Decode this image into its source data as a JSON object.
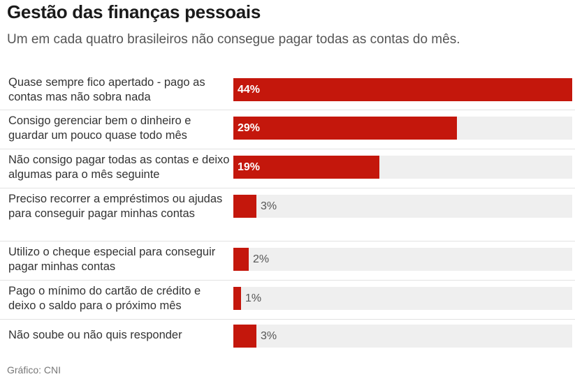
{
  "title": "Gestão das finanças pessoais",
  "subtitle": "Um em cada quatro brasileiros não consegue pagar todas as contas do mês.",
  "source": "Gráfico: CNI",
  "colors": {
    "bar": "#c4170c",
    "track": "#efefef"
  },
  "chart_data": {
    "type": "bar",
    "orientation": "horizontal",
    "categories": [
      "Quase sempre fico apertado - pago as contas mas não sobra nada",
      "Consigo gerenciar bem o dinheiro e guardar um pouco quase todo mês",
      "Não consigo pagar todas as contas e deixo algumas para o mês seguinte",
      "Preciso recorrer a empréstimos ou ajudas para conseguir pagar minhas contas",
      "Utilizo o cheque especial para conseguir pagar minhas contas",
      "Pago o mínimo do cartão de crédito e deixo o saldo para o próximo mês",
      "Não soube ou não quis responder"
    ],
    "values": [
      44,
      29,
      19,
      3,
      2,
      1,
      3
    ],
    "value_labels": [
      "44%",
      "29%",
      "19%",
      "3%",
      "2%",
      "1%",
      "3%"
    ],
    "xlim": [
      0,
      44
    ],
    "grid": false,
    "legend": "none"
  }
}
